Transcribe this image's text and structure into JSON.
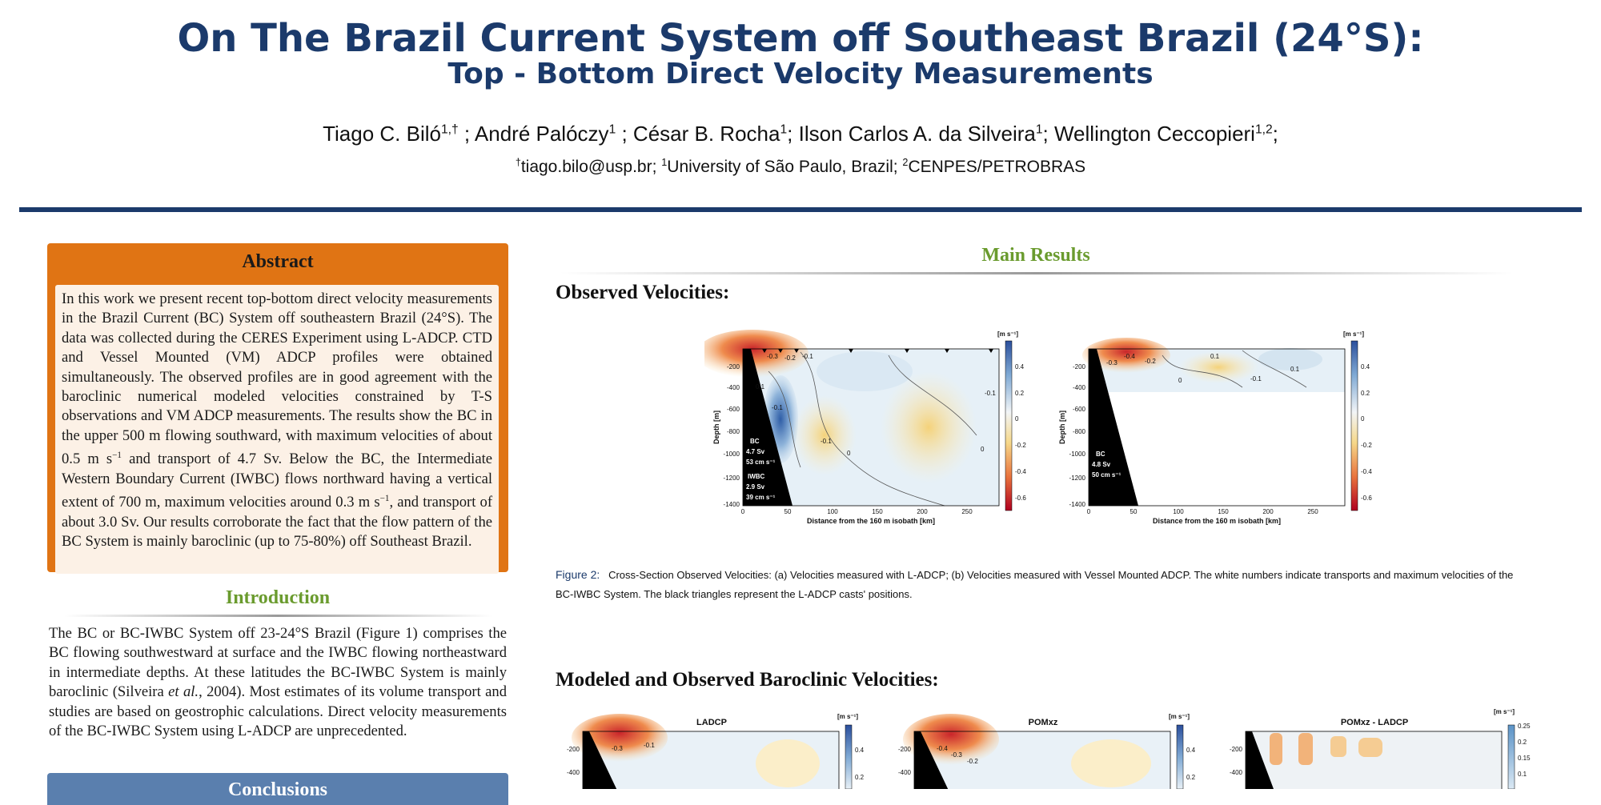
{
  "header": {
    "title": "On The Brazil Current System off Southeast Brazil (24°S):",
    "subtitle": "Top - Bottom Direct Velocity Measurements",
    "authors": [
      {
        "name": "Tiago C. Biló",
        "sup": "1,†"
      },
      {
        "name": "André Palóczy",
        "sup": "1"
      },
      {
        "name": "César B. Rocha",
        "sup": "1"
      },
      {
        "name": "Ilson Carlos A. da Silveira",
        "sup": "1"
      },
      {
        "name": "Wellington Ceccopieri",
        "sup": "1,2"
      }
    ],
    "affiliation": {
      "email_sup": "†",
      "email": "tiago.bilo@usp.br;",
      "inst1_sup": "1",
      "inst1": "University of São Paulo, Brazil;",
      "inst2_sup": "2",
      "inst2": "CENPES/PETROBRAS"
    },
    "rule_color": "#1b3a6b"
  },
  "abstract": {
    "heading": "Abstract",
    "text_before": "In this work we present recent top-bottom direct velocity measurements in the Brazil Current (BC) System off southeastern Brazil (24°S). The data was collected during the CERES Experiment using L-ADCP. CTD and Vessel Mounted (VM) ADCP profiles were obtained simultaneously.  The observed profiles are in good agreement with the baroclinic numerical modeled velocities constrained by T-S observations and VM ADCP measurements. The results show the BC in the upper 500 m flowing southward, with maximum velocities of about 0.5 m s",
    "sup1": "−1",
    "text_mid": " and transport of 4.7 Sv. Below the BC, the Intermediate Western Boundary Current (IWBC) flows northward having a vertical extent of 700 m, maximum velocities around 0.3 m s",
    "sup2": "−1",
    "text_after": ", and transport of about 3.0 Sv.  Our results corroborate the fact that the flow pattern of the BC System is mainly baroclinic (up to 75-80%) off Southeast Brazil.",
    "box_color": "#e07414",
    "inner_color": "#fcf1e6"
  },
  "introduction": {
    "heading": "Introduction",
    "text_before": "The BC or BC-IWBC System off 23-24°S Brazil (Figure 1) comprises the BC flowing southwestward at surface and the IWBC flowing northeastward in intermediate depths.  At these latitudes the BC-IWBC System is mainly baroclinic (Silveira ",
    "etal": "et al.",
    "text_after": ", 2004).  Most estimates of its volume transport and studies are based on geostrophic calculations. Direct velocity measurements of the BC-IWBC System using L-ADCP are unprecedented."
  },
  "conclusions": {
    "heading": "Conclusions",
    "box_color": "#5a7fae"
  },
  "main_results": {
    "heading": "Main Results",
    "heading_color": "#6a9b2e",
    "observed_heading": "Observed Velocities:",
    "modeled_heading": "Modeled and Observed Baroclinic Velocities:"
  },
  "figure2": {
    "units": "[m s⁻¹]",
    "ylabel": "Depth [m]",
    "xlabel": "Distance from the 160 m isobath [km]",
    "yticks": [
      "-200",
      "-400",
      "-600",
      "-800",
      "-1000",
      "-1200",
      "-1400"
    ],
    "xticks": [
      "0",
      "50",
      "100",
      "150",
      "200",
      "250"
    ],
    "cbar_ticks": [
      "0.4",
      "0.2",
      "0",
      "-0.2",
      "-0.4",
      "-0.6"
    ],
    "panel_a_labels": [
      "BC",
      "4.7 Sv",
      "53 cm s⁻¹",
      "IWBC",
      "2.9 Sv",
      "39 cm s⁻¹"
    ],
    "panel_b_labels": [
      "BC",
      "4.8 Sv",
      "50 cm s⁻¹"
    ],
    "contour_labels_a": [
      "-0.3",
      "-0.2",
      "-0.1",
      "0.1",
      "-0.1",
      "-0.1",
      "0",
      "0",
      "-0.1"
    ],
    "contour_labels_b": [
      "-0.4",
      "-0.2",
      "-0.3",
      "0.1",
      "0",
      "-0.1",
      "0.1"
    ]
  },
  "caption": {
    "label": "Figure 2:",
    "text": "Cross-Section Observed Velocities: (a) Velocities measured with L-ADCP; (b) Velocities measured with Vessel Mounted ADCP. The white numbers indicate transports and maximum velocities of the BC-IWBC System.  The black triangles represent the L-ADCP casts' positions."
  },
  "figure3": {
    "panels": [
      {
        "title": "LADCP",
        "units": "[m s⁻¹]",
        "cbar_ticks": [
          "0.4",
          "0.2"
        ],
        "contour_labels": [
          "-0.3",
          "-0.1"
        ]
      },
      {
        "title": "POMxz",
        "units": "[m s⁻¹]",
        "cbar_ticks": [
          "0.4",
          "0.2"
        ],
        "contour_labels": [
          "-0.4",
          "-0.3",
          "-0.2"
        ]
      },
      {
        "title": "POMxz - LADCP",
        "units": "[m s⁻¹]",
        "cbar_ticks": [
          "0.25",
          "0.2",
          "0.15",
          "0.1"
        ],
        "contour_labels": []
      }
    ],
    "yticks": [
      "-200",
      "-400"
    ]
  }
}
